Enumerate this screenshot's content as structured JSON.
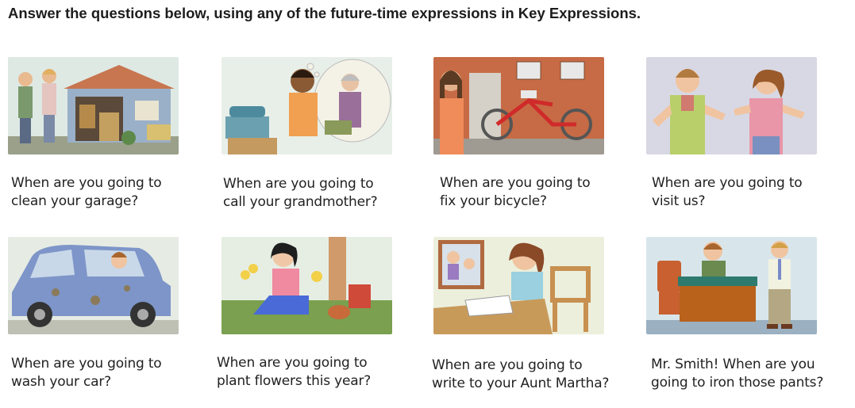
{
  "instruction": "Answer the questions below, using any of the future-time expressions in Key Expressions.",
  "items": [
    {
      "scene": "garage-scene",
      "line1": "When are you going to",
      "line2": "clean your garage?"
    },
    {
      "scene": "grandmother-call-scene",
      "line1": "When are you going to",
      "line2": "call your grandmother?"
    },
    {
      "scene": "bicycle-repair-scene",
      "line1": "When are you going to",
      "line2": "fix your bicycle?"
    },
    {
      "scene": "visiting-couple-scene",
      "line1": "When are you going to",
      "line2": "visit us?"
    },
    {
      "scene": "dirty-car-scene",
      "line1": "When are you going to",
      "line2": "wash your car?"
    },
    {
      "scene": "gardening-scene",
      "line1": "When are you going to",
      "line2": "plant flowers this year?"
    },
    {
      "scene": "letter-writing-scene",
      "line1": "When are you going to",
      "line2": "write to your Aunt Martha?"
    },
    {
      "scene": "office-scene",
      "line1": "Mr. Smith! When are you",
      "line2": "going to iron those pants?"
    }
  ]
}
